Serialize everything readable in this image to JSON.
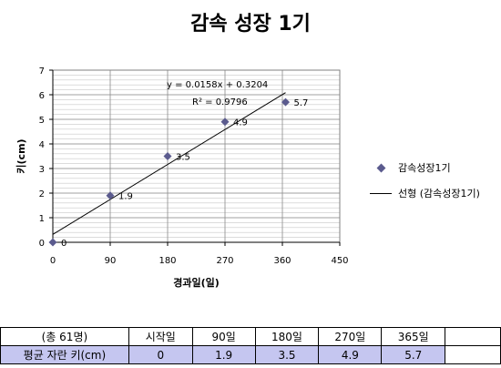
{
  "chart_data": {
    "type": "scatter",
    "title": "감속 성장 1기",
    "xlabel": "경과일(일)",
    "ylabel": "키(cm)",
    "xlim": [
      0,
      450
    ],
    "ylim": [
      0,
      7
    ],
    "x_ticks": [
      "0",
      "90",
      "180",
      "270",
      "360",
      "450"
    ],
    "y_ticks": [
      "0",
      "1",
      "2",
      "3",
      "4",
      "5",
      "6",
      "7"
    ],
    "grid": "vertical and horizontal",
    "legend_position": "right",
    "series": [
      {
        "name": "감속성장1기",
        "marker": "diamond",
        "color": "#5b5b8e",
        "x": [
          0,
          90,
          180,
          270,
          365
        ],
        "y": [
          0,
          1.9,
          3.5,
          4.9,
          5.7
        ],
        "labels": [
          "0",
          "1.9",
          "3.5",
          "4.9",
          "5.7"
        ]
      }
    ],
    "trendline": {
      "name": "선형 (감속성장1기)",
      "slope": 0.0158,
      "intercept": 0.3204,
      "x_range": [
        0,
        365
      ],
      "equation": "y = 0.0158x + 0.3204",
      "r2": "R² = 0.9796"
    }
  },
  "table": {
    "header": [
      "(총 61명)",
      "시작일",
      "90일",
      "180일",
      "270일",
      "365일"
    ],
    "values": [
      "평균 자란 키(cm)",
      "0",
      "1.9",
      "3.5",
      "4.9",
      "5.7"
    ]
  }
}
